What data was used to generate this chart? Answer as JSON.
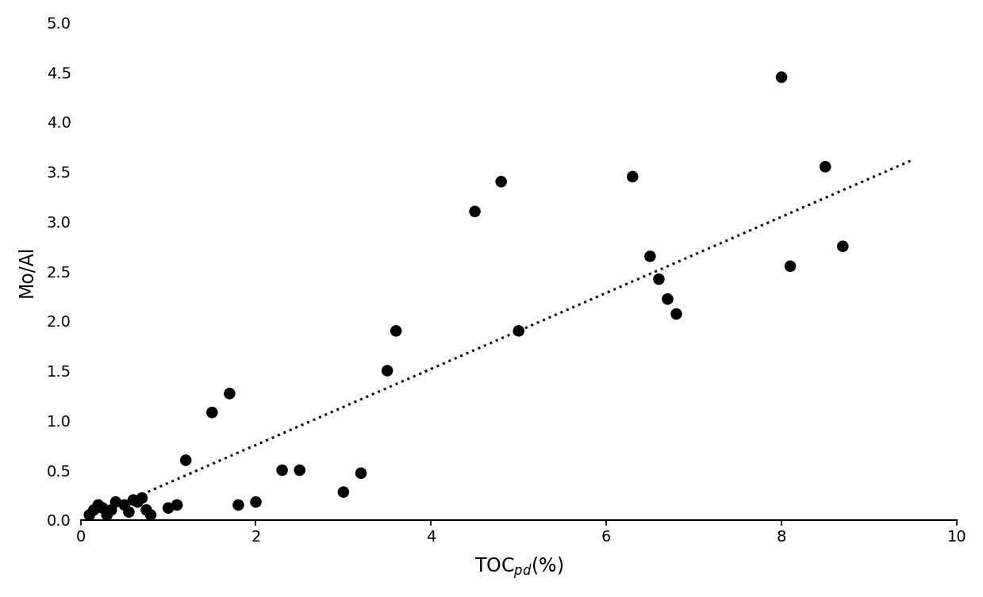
{
  "x": [
    0.1,
    0.15,
    0.2,
    0.25,
    0.3,
    0.35,
    0.4,
    0.5,
    0.55,
    0.6,
    0.65,
    0.7,
    0.75,
    0.8,
    1.0,
    1.1,
    1.2,
    1.5,
    1.7,
    1.8,
    2.0,
    2.3,
    2.5,
    3.0,
    3.2,
    3.5,
    3.6,
    4.5,
    4.8,
    5.0,
    6.3,
    6.5,
    6.6,
    6.7,
    6.8,
    8.0,
    8.1,
    8.5,
    8.7
  ],
  "y": [
    0.05,
    0.1,
    0.15,
    0.12,
    0.05,
    0.1,
    0.18,
    0.15,
    0.08,
    0.2,
    0.18,
    0.22,
    0.1,
    0.05,
    0.12,
    0.15,
    0.6,
    1.08,
    1.27,
    0.15,
    0.18,
    0.5,
    0.5,
    0.28,
    0.47,
    1.5,
    1.9,
    3.1,
    3.4,
    1.9,
    3.45,
    2.65,
    2.42,
    2.22,
    2.07,
    4.45,
    2.55,
    3.55,
    2.75
  ],
  "trendline_x": [
    0.5,
    9.5
  ],
  "trendline_y": [
    0.18,
    3.62
  ],
  "xlabel": "TOC$_{pd}$(%)",
  "ylabel": "Mo/Al",
  "xlim": [
    0,
    10
  ],
  "ylim": [
    0,
    5
  ],
  "xticks": [
    0,
    2,
    4,
    6,
    8,
    10
  ],
  "yticks": [
    0,
    0.5,
    1,
    1.5,
    2,
    2.5,
    3,
    3.5,
    4,
    4.5,
    5
  ],
  "marker_color": "#000000",
  "marker_size": 110,
  "trendline_color": "#000000",
  "background_color": "#ffffff",
  "xlabel_fontsize": 17,
  "ylabel_fontsize": 17,
  "tick_labelsize": 14
}
